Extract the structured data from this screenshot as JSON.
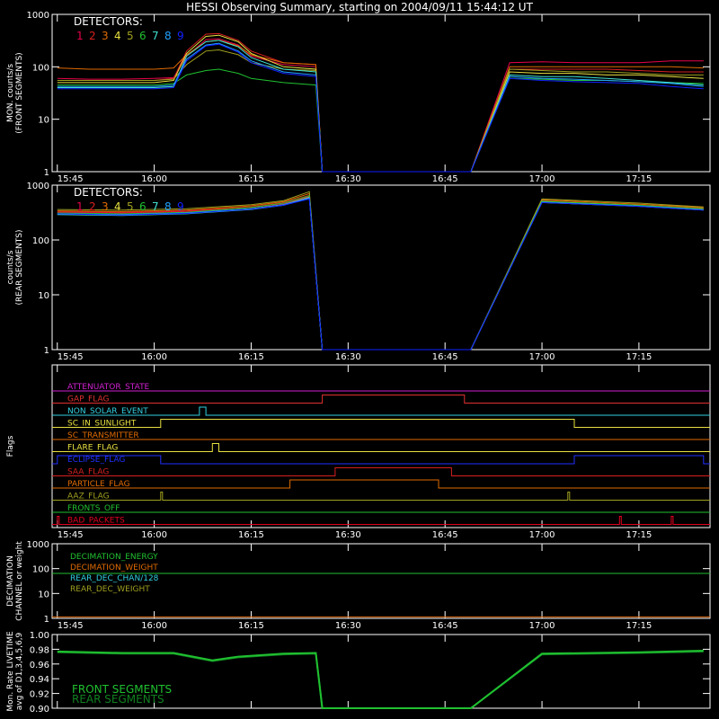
{
  "title": "HESSI Observing Summary, starting on 2004/09/11 15:44:12 UT",
  "time_ticks": [
    "15:45",
    "16:00",
    "16:15",
    "16:30",
    "16:45",
    "17:00",
    "17:15"
  ],
  "colors": {
    "det1": "#e8004a",
    "det2": "#d62020",
    "det3": "#e06a00",
    "det4": "#e8e040",
    "det5": "#a0a020",
    "det6": "#20c030",
    "det7": "#40e0d0",
    "det8": "#20a0ff",
    "det9": "#1020ff"
  },
  "chart_data": [
    {
      "id": "front",
      "type": "line",
      "ylabel_lines": [
        "MON. counts/s",
        "(FRONT SEGMENTS)"
      ],
      "yscale": "log",
      "ylim": [
        1,
        1000
      ],
      "ytick_labels": [
        "1",
        "10",
        "100",
        "1000"
      ],
      "legend_title": "DETECTORS:",
      "legend_items": [
        "1",
        "2",
        "3",
        "4",
        "5",
        "6",
        "7",
        "8",
        "9"
      ],
      "data_gap": [
        "16:26",
        "16:49"
      ],
      "x_times": [
        "15:45",
        "15:50",
        "15:55",
        "16:00",
        "16:03",
        "16:05",
        "16:08",
        "16:10",
        "16:13",
        "16:15",
        "16:20",
        "16:25",
        "16:26",
        "16:49",
        "16:55",
        "17:00",
        "17:05",
        "17:10",
        "17:15",
        "17:20",
        "17:25"
      ],
      "series": [
        {
          "color": "det1",
          "values": [
            60,
            58,
            58,
            60,
            62,
            160,
            330,
            340,
            260,
            160,
            110,
            100,
            1,
            1,
            120,
            125,
            120,
            120,
            120,
            130,
            130
          ]
        },
        {
          "color": "det2",
          "values": [
            55,
            55,
            55,
            55,
            60,
            200,
            420,
            430,
            320,
            200,
            120,
            110,
            1,
            1,
            90,
            90,
            90,
            90,
            85,
            80,
            80
          ]
        },
        {
          "color": "det3",
          "values": [
            95,
            90,
            90,
            90,
            95,
            170,
            300,
            320,
            250,
            170,
            120,
            110,
            1,
            1,
            100,
            100,
            100,
            100,
            100,
            100,
            95
          ]
        },
        {
          "color": "det4",
          "values": [
            50,
            50,
            50,
            50,
            55,
            180,
            380,
            400,
            300,
            180,
            100,
            90,
            1,
            1,
            80,
            75,
            75,
            70,
            70,
            65,
            60
          ]
        },
        {
          "color": "det5",
          "values": [
            55,
            55,
            55,
            55,
            58,
            110,
            200,
            210,
            170,
            120,
            90,
            85,
            1,
            1,
            90,
            85,
            80,
            80,
            75,
            70,
            70
          ]
        },
        {
          "color": "det6",
          "values": [
            45,
            45,
            45,
            45,
            48,
            70,
            85,
            90,
            75,
            60,
            50,
            45,
            1,
            1,
            60,
            58,
            55,
            55,
            52,
            50,
            48
          ]
        },
        {
          "color": "det7",
          "values": [
            40,
            40,
            40,
            40,
            42,
            160,
            300,
            320,
            240,
            150,
            90,
            80,
            1,
            1,
            70,
            65,
            65,
            60,
            55,
            50,
            45
          ]
        },
        {
          "color": "det8",
          "values": [
            42,
            42,
            42,
            42,
            45,
            140,
            260,
            280,
            200,
            130,
            80,
            70,
            1,
            1,
            65,
            60,
            58,
            55,
            52,
            48,
            42
          ]
        },
        {
          "color": "det9",
          "values": [
            38,
            38,
            38,
            38,
            40,
            130,
            250,
            270,
            190,
            120,
            75,
            65,
            1,
            1,
            60,
            55,
            52,
            50,
            48,
            42,
            38
          ]
        }
      ]
    },
    {
      "id": "rear",
      "type": "line",
      "ylabel_lines": [
        "counts/s",
        "(REAR SEGMENTS)"
      ],
      "yscale": "log",
      "ylim": [
        1,
        1000
      ],
      "ytick_labels": [
        "1",
        "10",
        "100",
        "1000"
      ],
      "legend_title": "DETECTORS:",
      "legend_items": [
        "1",
        "2",
        "3",
        "4",
        "5",
        "6",
        "7",
        "8",
        "9"
      ],
      "data_gap": [
        "16:26",
        "16:49"
      ],
      "x_times": [
        "15:45",
        "15:55",
        "16:05",
        "16:15",
        "16:20",
        "16:24",
        "16:26",
        "16:49",
        "17:00",
        "17:15",
        "17:25"
      ],
      "series": [
        {
          "color": "det1",
          "values": [
            320,
            310,
            330,
            390,
            460,
            620,
            1,
            1,
            490,
            420,
            370
          ]
        },
        {
          "color": "det2",
          "values": [
            330,
            320,
            340,
            400,
            480,
            650,
            1,
            1,
            520,
            430,
            380
          ]
        },
        {
          "color": "det3",
          "values": [
            340,
            330,
            350,
            420,
            500,
            700,
            1,
            1,
            540,
            450,
            390
          ]
        },
        {
          "color": "det4",
          "values": [
            300,
            290,
            310,
            370,
            440,
            600,
            1,
            1,
            500,
            420,
            360
          ]
        },
        {
          "color": "det5",
          "values": [
            360,
            350,
            370,
            440,
            520,
            760,
            1,
            1,
            560,
            470,
            400
          ]
        },
        {
          "color": "det6",
          "values": [
            310,
            300,
            320,
            390,
            470,
            640,
            1,
            1,
            510,
            430,
            370
          ]
        },
        {
          "color": "det7",
          "values": [
            290,
            280,
            300,
            360,
            430,
            580,
            1,
            1,
            480,
            410,
            350
          ]
        },
        {
          "color": "det8",
          "values": [
            300,
            290,
            310,
            370,
            440,
            590,
            1,
            1,
            490,
            415,
            355
          ]
        },
        {
          "color": "det9",
          "values": [
            300,
            285,
            305,
            365,
            430,
            560,
            1,
            1,
            480,
            410,
            350
          ]
        }
      ]
    },
    {
      "id": "flags",
      "type": "line",
      "ylabel": "Flags",
      "rows": [
        {
          "name": "ATTENUATOR_STATE",
          "color": "#d020d0",
          "high": []
        },
        {
          "name": "GAP_FLAG",
          "color": "#e03030",
          "high": [
            [
              "16:26",
              "16:48"
            ]
          ]
        },
        {
          "name": "NON_SOLAR_EVENT",
          "color": "#30d0e0",
          "high": [
            [
              "16:07",
              "16:08"
            ]
          ]
        },
        {
          "name": "SC_IN_SUNLIGHT",
          "color": "#e8e040",
          "high": [
            [
              "16:01",
              "17:05"
            ]
          ]
        },
        {
          "name": "SC_TRANSMITTER",
          "color": "#e06a00",
          "high": []
        },
        {
          "name": "FLARE_FLAG",
          "color": "#e8e040",
          "high": [
            [
              "16:09",
              "16:10"
            ]
          ]
        },
        {
          "name": "ECLIPSE_FLAG",
          "color": "#2030ff",
          "high": [
            [
              "15:45",
              "16:01"
            ],
            [
              "17:05",
              "17:25"
            ]
          ]
        },
        {
          "name": "SAA_FLAG",
          "color": "#d62020",
          "high": [
            [
              "16:28",
              "16:46"
            ]
          ]
        },
        {
          "name": "PARTICLE_FLAG",
          "color": "#e06a00",
          "high": [
            [
              "16:21",
              "16:44"
            ]
          ]
        },
        {
          "name": "AAZ_FLAG",
          "color": "#a0a020",
          "high": [
            [
              "16:01",
              "16:01"
            ],
            [
              "17:04",
              "17:04"
            ]
          ]
        },
        {
          "name": "FRONTS_OFF",
          "color": "#20c030",
          "high": []
        },
        {
          "name": "BAD_PACKETS",
          "color": "#e00020",
          "high": [
            [
              "15:45",
              "15:45"
            ],
            [
              "17:12",
              "17:12"
            ],
            [
              "17:20",
              "17:20"
            ]
          ]
        }
      ]
    },
    {
      "id": "decimation",
      "type": "line",
      "ylabel_lines": [
        "DECIMATION",
        "CHANNEL or weight"
      ],
      "yscale": "log",
      "ylim": [
        1,
        1000
      ],
      "ytick_labels": [
        "1",
        "10",
        "100",
        "1000"
      ],
      "legend_items": [
        {
          "name": "DECIMATION_ENERGY",
          "color": "#20c030"
        },
        {
          "name": "DECIMATION_WEIGHT",
          "color": "#e06a00"
        },
        {
          "name": "REAR_DEC_CHAN/128",
          "color": "#30d0e0"
        },
        {
          "name": "REAR_DEC_WEIGHT",
          "color": "#a0a020"
        }
      ],
      "series": [
        {
          "name": "DECIMATION_ENERGY",
          "color": "#20c030",
          "values": [
            64,
            64
          ]
        },
        {
          "name": "DECIMATION_WEIGHT",
          "color": "#e06a00",
          "values": [
            1.15,
            1.15
          ]
        }
      ]
    },
    {
      "id": "livetime",
      "type": "line",
      "ylabel_lines": [
        "Mon. Rate LIVETIME",
        "avg of D1,3,4,5,6,9"
      ],
      "ylim": [
        0.9,
        1.0
      ],
      "ytick_labels": [
        "0.90",
        "0.92",
        "0.94",
        "0.96",
        "0.98",
        "1.00"
      ],
      "legend_items": [
        {
          "name": "FRONT SEGMENTS",
          "color": "#20c030"
        },
        {
          "name": "REAR SEGMENTS",
          "color": "#108020"
        }
      ],
      "data_gap": [
        "16:26",
        "16:49"
      ],
      "x_times": [
        "15:45",
        "15:55",
        "16:03",
        "16:06",
        "16:09",
        "16:13",
        "16:20",
        "16:25",
        "16:26",
        "16:49",
        "17:00",
        "17:15",
        "17:25"
      ],
      "series": [
        {
          "name": "FRONT SEGMENTS",
          "color": "#20c030",
          "values": [
            0.977,
            0.975,
            0.975,
            0.97,
            0.965,
            0.97,
            0.974,
            0.975,
            0.9,
            0.9,
            0.974,
            0.976,
            0.978
          ]
        },
        {
          "name": "REAR SEGMENTS",
          "color": "#108020",
          "values": [
            0.976,
            0.974,
            0.974,
            0.969,
            0.964,
            0.969,
            0.973,
            0.974,
            0.9,
            0.9,
            0.973,
            0.975,
            0.977
          ]
        }
      ]
    }
  ]
}
